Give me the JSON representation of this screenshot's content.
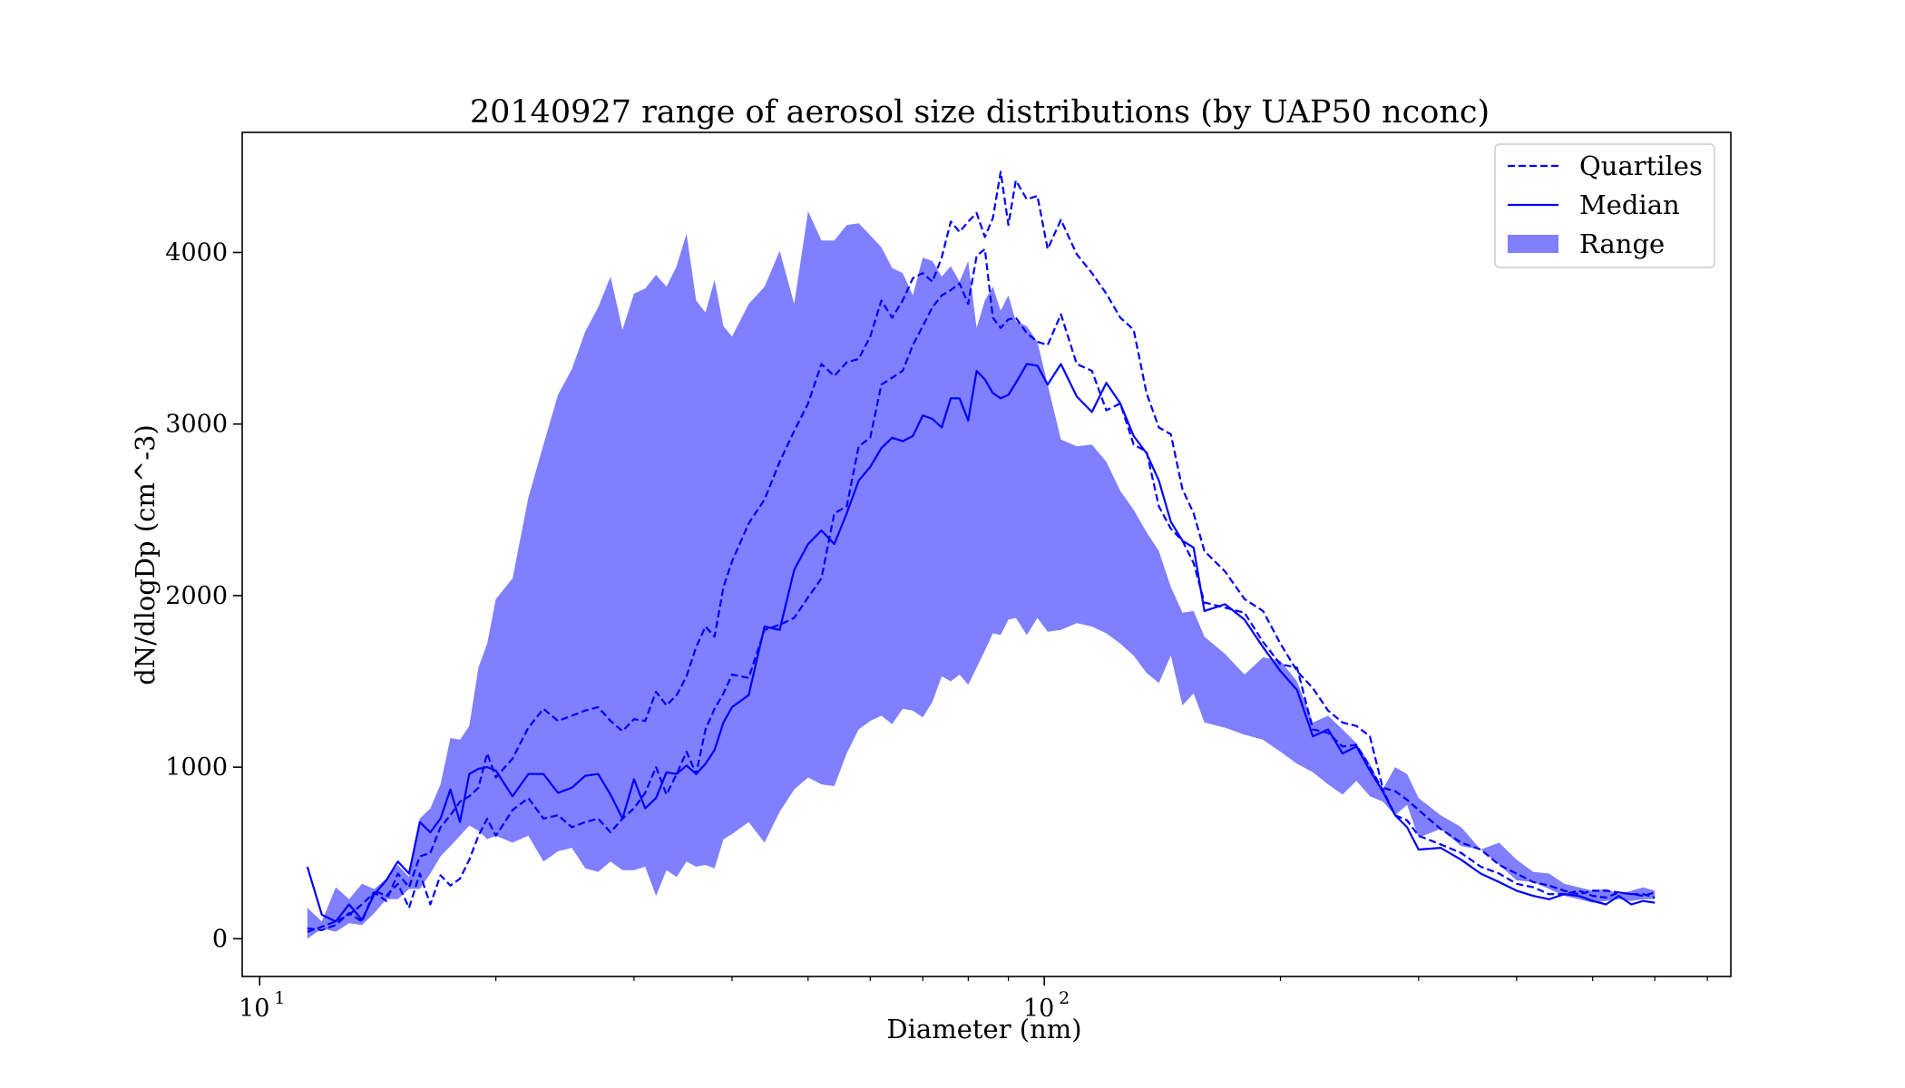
{
  "chart_data": {
    "type": "line",
    "title": "20140927 range of aerosol size distributions (by UAP50 nconc)",
    "xlabel": "Diameter (nm)",
    "ylabel": "dN/dlogDp (cm^-3)",
    "xscale": "log",
    "xlim": [
      9.5,
      750
    ],
    "ylim": [
      -220,
      4700
    ],
    "x_ticks": [
      {
        "value": 10,
        "base": "10",
        "exp": "1"
      },
      {
        "value": 100,
        "base": "10",
        "exp": "2"
      }
    ],
    "y_ticks": [
      0,
      1000,
      2000,
      3000,
      4000
    ],
    "grid": false,
    "legend_position": "top-right",
    "legend": [
      {
        "label": "Quartiles",
        "style": "dashed-line"
      },
      {
        "label": "Median",
        "style": "solid-line"
      },
      {
        "label": "Range",
        "style": "filled-area"
      }
    ],
    "colors": {
      "line": "#0000ff",
      "fill": "#8080ff",
      "fill_opacity": 0.5
    },
    "x": [
      11.5,
      12,
      12.5,
      13,
      13.5,
      14,
      14.5,
      15,
      15.5,
      16,
      16.5,
      17,
      17.5,
      18,
      18.5,
      19,
      19.5,
      20,
      21,
      22,
      23,
      24,
      25,
      26,
      27,
      28,
      29,
      30,
      31,
      32,
      33,
      34,
      35,
      36,
      37,
      38,
      39,
      40,
      42,
      44,
      46,
      48,
      50,
      52,
      54,
      56,
      58,
      60,
      62,
      64,
      66,
      68,
      70,
      72,
      74,
      76,
      78,
      80,
      82,
      84,
      86,
      88,
      90,
      92,
      95,
      98,
      101,
      105,
      110,
      115,
      120,
      125,
      130,
      135,
      140,
      145,
      150,
      155,
      160,
      170,
      180,
      190,
      200,
      210,
      220,
      230,
      240,
      250,
      260,
      270,
      280,
      290,
      300,
      320,
      340,
      360,
      380,
      400,
      420,
      440,
      460,
      480,
      500,
      520,
      540,
      560,
      580,
      600
    ],
    "series": [
      {
        "name": "Median",
        "style": "solid",
        "values": [
          420,
          140,
          100,
          200,
          110,
          260,
          340,
          450,
          380,
          680,
          620,
          700,
          870,
          680,
          960,
          990,
          1000,
          980,
          830,
          960,
          960,
          850,
          880,
          950,
          960,
          840,
          700,
          930,
          760,
          820,
          970,
          960,
          1010,
          960,
          1020,
          1100,
          1260,
          1350,
          1420,
          1820,
          1800,
          2150,
          2300,
          2380,
          2300,
          2480,
          2670,
          2750,
          2860,
          2920,
          2900,
          2930,
          3050,
          3030,
          2980,
          3150,
          3150,
          3020,
          3310,
          3260,
          3180,
          3150,
          3170,
          3240,
          3350,
          3340,
          3230,
          3350,
          3160,
          3070,
          3240,
          3120,
          2930,
          2830,
          2670,
          2430,
          2320,
          2280,
          1910,
          1950,
          1860,
          1700,
          1560,
          1450,
          1180,
          1220,
          1080,
          1120,
          980,
          860,
          720,
          650,
          520,
          530,
          460,
          380,
          330,
          280,
          250,
          230,
          260,
          250,
          220,
          200,
          250,
          200,
          220,
          210
        ]
      },
      {
        "name": "Lower quartile",
        "style": "dashed",
        "values": [
          60,
          50,
          80,
          150,
          100,
          280,
          250,
          320,
          180,
          380,
          200,
          370,
          310,
          350,
          460,
          600,
          700,
          600,
          750,
          820,
          700,
          720,
          650,
          680,
          700,
          620,
          700,
          760,
          850,
          1000,
          840,
          960,
          1090,
          960,
          1220,
          1340,
          1430,
          1540,
          1520,
          1800,
          1830,
          1870,
          1990,
          2100,
          2480,
          2520,
          2870,
          2920,
          3230,
          3270,
          3310,
          3460,
          3570,
          3680,
          3750,
          3780,
          3820,
          3700,
          3980,
          4020,
          3620,
          3560,
          3610,
          3620,
          3530,
          3480,
          3460,
          3640,
          3350,
          3310,
          3080,
          3120,
          2880,
          2840,
          2520,
          2390,
          2320,
          2190,
          1960,
          1930,
          1900,
          1730,
          1600,
          1580,
          1220,
          1200,
          1120,
          1130,
          1000,
          870,
          720,
          690,
          600,
          550,
          500,
          420,
          380,
          320,
          300,
          260,
          260,
          280,
          250,
          240,
          270,
          260,
          260,
          240
        ]
      },
      {
        "name": "Upper quartile",
        "style": "dashed",
        "values": [
          40,
          70,
          100,
          140,
          200,
          270,
          220,
          380,
          300,
          480,
          500,
          650,
          720,
          800,
          830,
          880,
          1080,
          940,
          1050,
          1230,
          1340,
          1270,
          1300,
          1330,
          1350,
          1270,
          1210,
          1280,
          1270,
          1440,
          1360,
          1420,
          1530,
          1700,
          1820,
          1760,
          2050,
          2200,
          2420,
          2560,
          2780,
          2960,
          3120,
          3350,
          3280,
          3360,
          3380,
          3510,
          3720,
          3620,
          3720,
          3850,
          3880,
          3830,
          3970,
          4180,
          4120,
          4180,
          4230,
          4090,
          4200,
          4470,
          4160,
          4420,
          4310,
          4330,
          4020,
          4190,
          3990,
          3880,
          3760,
          3620,
          3550,
          3180,
          2980,
          2940,
          2620,
          2480,
          2260,
          2140,
          1980,
          1910,
          1720,
          1560,
          1460,
          1330,
          1260,
          1240,
          1180,
          880,
          860,
          810,
          750,
          640,
          560,
          520,
          430,
          380,
          330,
          310,
          280,
          260,
          280,
          280,
          270,
          260,
          250,
          270
        ]
      },
      {
        "name": "Range max",
        "style": "fill-upper",
        "values": [
          180,
          100,
          300,
          230,
          320,
          290,
          350,
          430,
          360,
          700,
          760,
          900,
          1170,
          1160,
          1240,
          1580,
          1720,
          1980,
          2100,
          2570,
          2880,
          3170,
          3320,
          3540,
          3680,
          3860,
          3550,
          3760,
          3790,
          3870,
          3800,
          3920,
          4110,
          3720,
          3650,
          3840,
          3570,
          3510,
          3700,
          3800,
          4010,
          3700,
          4240,
          4070,
          4070,
          4160,
          4170,
          4100,
          4030,
          3910,
          3880,
          3750,
          3970,
          3950,
          3860,
          3920,
          3830,
          3950,
          3560,
          3720,
          3800,
          3660,
          3750,
          3600,
          3570,
          3480,
          3230,
          2910,
          2870,
          2880,
          2780,
          2610,
          2500,
          2370,
          2260,
          2050,
          1900,
          1910,
          1760,
          1660,
          1540,
          1640,
          1620,
          1500,
          1260,
          1300,
          1220,
          1140,
          1020,
          870,
          1000,
          960,
          820,
          720,
          650,
          520,
          560,
          460,
          390,
          380,
          320,
          300,
          280,
          290,
          260,
          280,
          300,
          280
        ]
      },
      {
        "name": "Range min",
        "style": "fill-lower",
        "values": [
          0,
          60,
          40,
          90,
          80,
          150,
          230,
          230,
          290,
          290,
          380,
          480,
          540,
          600,
          660,
          630,
          580,
          600,
          560,
          600,
          450,
          510,
          530,
          410,
          390,
          450,
          400,
          400,
          420,
          250,
          400,
          360,
          450,
          420,
          430,
          410,
          580,
          610,
          680,
          560,
          740,
          870,
          940,
          900,
          890,
          1080,
          1220,
          1270,
          1300,
          1250,
          1340,
          1330,
          1290,
          1380,
          1530,
          1500,
          1540,
          1480,
          1580,
          1680,
          1780,
          1770,
          1860,
          1870,
          1770,
          1870,
          1790,
          1800,
          1840,
          1820,
          1780,
          1720,
          1650,
          1550,
          1490,
          1650,
          1360,
          1430,
          1260,
          1230,
          1190,
          1160,
          1090,
          1020,
          970,
          900,
          840,
          920,
          830,
          800,
          720,
          780,
          590,
          640,
          540,
          520,
          430,
          340,
          330,
          290,
          250,
          230,
          210,
          220,
          230,
          220,
          230,
          230
        ]
      }
    ]
  }
}
